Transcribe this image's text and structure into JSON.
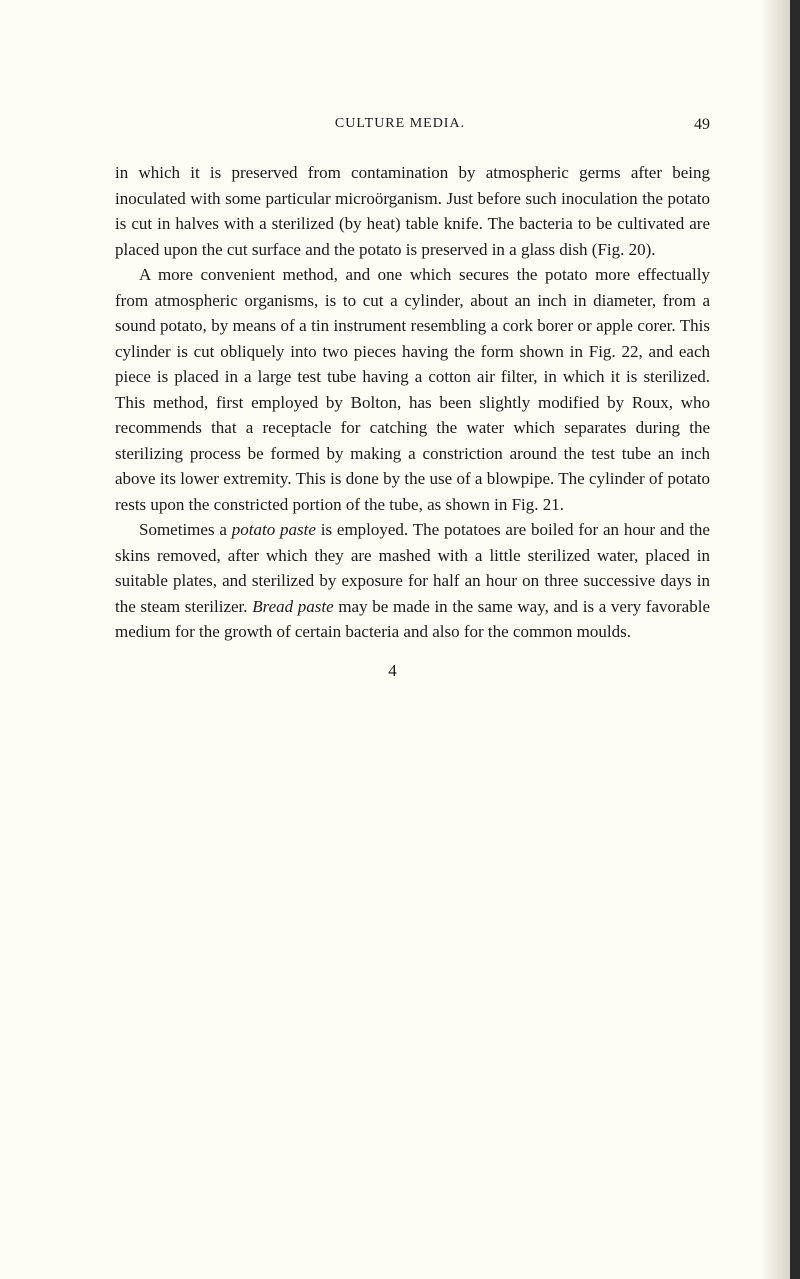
{
  "header": {
    "title": "CULTURE MEDIA.",
    "page_number": "49"
  },
  "paragraphs": {
    "p1_part1": "in which it is preserved from contamination by atmospheric germs after being inoculated with some particular microörganism. Just before such inoculation the potato is cut in halves with a sterilized (by heat) table knife. The bacteria to be cultivated are placed upon the cut surface and the potato is preserved in a glass dish (Fig. 20).",
    "p2": "A more convenient method, and one which secures the potato more effectually from atmospheric organisms, is to cut a cylinder, about an inch in diameter, from a sound potato, by means of a tin instrument resembling a cork borer or apple corer. This cylinder is cut obliquely into two pieces having the form shown in Fig. 22, and each piece is placed in a large test tube having a cotton air filter, in which it is sterilized. This method, first employed by Bolton, has been slightly modified by Roux, who recommends that a receptacle for catching the water which separates during the sterilizing process be formed by making a constriction around the test tube an inch above its lower extremity. This is done by the use of a blowpipe. The cylinder of potato rests upon the constricted portion of the tube, as shown in Fig. 21.",
    "p3_part1": "Sometimes a ",
    "p3_italic1": "potato paste",
    "p3_part2": " is employed. The potatoes are boiled for an hour and the skins removed, after which they are mashed with a little sterilized water, placed in suitable plates, and sterilized by exposure for half an hour on three successive days in the steam sterilizer. ",
    "p3_italic2": "Bread paste",
    "p3_part3": " may be made in the same way, and is a very favorable medium for the growth of certain bacteria and also for the common moulds."
  },
  "footer": {
    "number": "4"
  },
  "colors": {
    "background": "#fdfcf5",
    "text": "#1a1a1a",
    "edge": "#2a2a2a"
  },
  "typography": {
    "body_fontsize": 17,
    "header_fontsize": 14,
    "line_height": 1.5
  }
}
